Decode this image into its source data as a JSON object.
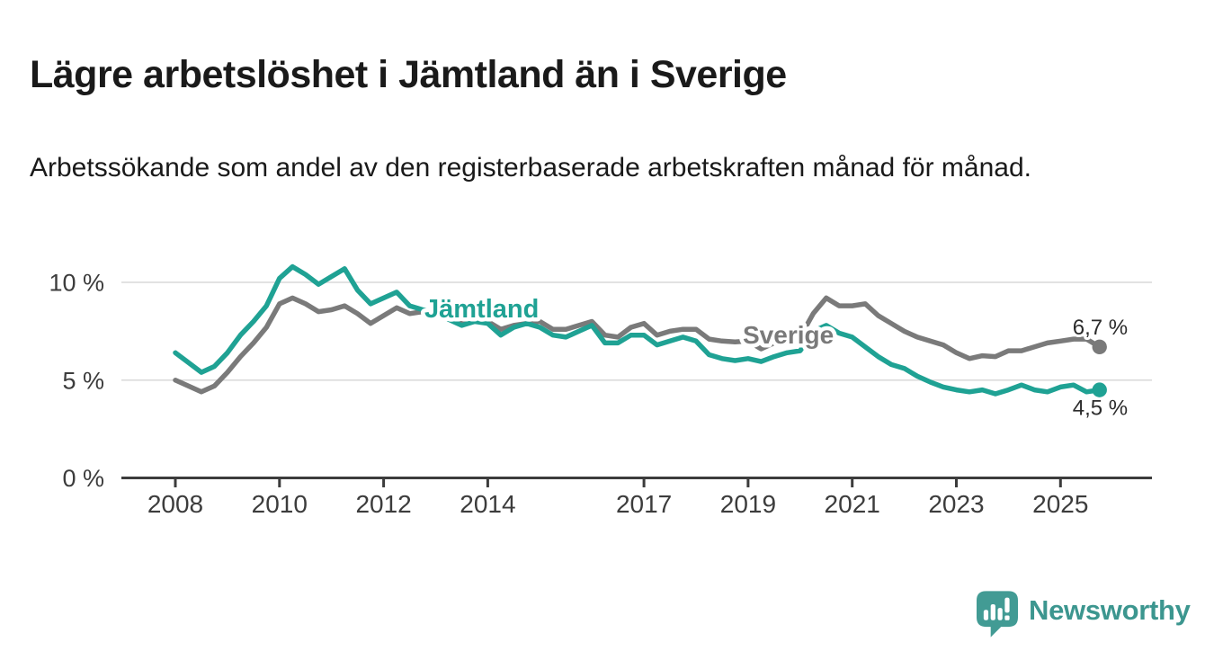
{
  "header": {
    "title": "Lägre arbetslöshet i Jämtland än i Sverige",
    "subtitle": "Arbetssökande som andel av den registerbaserade arbetskraften månad för månad."
  },
  "chart_data": {
    "type": "line",
    "title": "Lägre arbetslöshet i Jämtland än i Sverige",
    "subtitle": "Arbetssökande som andel av den registerbaserade arbetskraften månad för månad.",
    "unit": "%",
    "grid": "horizontal",
    "ylim": [
      0,
      11.5
    ],
    "x_start": 2008.0,
    "x_step_years": 0.25,
    "x_end": 2025.75,
    "y_ticks": [
      {
        "value": 0,
        "label": "0 %"
      },
      {
        "value": 5,
        "label": "5 %"
      },
      {
        "value": 10,
        "label": "10 %"
      }
    ],
    "x_ticks": [
      {
        "value": 2008,
        "label": "2008"
      },
      {
        "value": 2010,
        "label": "2010"
      },
      {
        "value": 2012,
        "label": "2012"
      },
      {
        "value": 2014,
        "label": "2014"
      },
      {
        "value": 2017,
        "label": "2017"
      },
      {
        "value": 2019,
        "label": "2019"
      },
      {
        "value": 2021,
        "label": "2021"
      },
      {
        "value": 2023,
        "label": "2023"
      },
      {
        "value": 2025,
        "label": "2025"
      }
    ],
    "series": [
      {
        "name": "Jämtland",
        "color": "#1fa294",
        "end_value": 4.5,
        "end_label": "4,5 %",
        "values": [
          6.4,
          5.9,
          5.4,
          5.7,
          6.4,
          7.3,
          8.0,
          8.8,
          10.2,
          10.8,
          10.4,
          9.9,
          10.3,
          10.7,
          9.6,
          8.9,
          9.2,
          9.5,
          8.8,
          8.6,
          8.4,
          8.1,
          7.8,
          8.0,
          7.9,
          7.3,
          7.7,
          7.9,
          7.7,
          7.3,
          7.2,
          7.5,
          7.8,
          6.9,
          6.9,
          7.3,
          7.3,
          6.8,
          7.0,
          7.2,
          7.0,
          6.3,
          6.1,
          6.0,
          6.1,
          5.95,
          6.2,
          6.4,
          6.5,
          7.5,
          7.8,
          7.4,
          7.2,
          6.7,
          6.2,
          5.8,
          5.6,
          5.2,
          4.9,
          4.65,
          4.5,
          4.4,
          4.5,
          4.3,
          4.5,
          4.75,
          4.5,
          4.4,
          4.65,
          4.75,
          4.4,
          4.5
        ]
      },
      {
        "name": "Sverige",
        "color": "#7a7a7a",
        "end_value": 6.7,
        "end_label": "6,7 %",
        "values": [
          5.0,
          4.7,
          4.4,
          4.7,
          5.4,
          6.2,
          6.9,
          7.7,
          8.9,
          9.2,
          8.9,
          8.5,
          8.6,
          8.8,
          8.4,
          7.9,
          8.3,
          8.7,
          8.4,
          8.5,
          8.5,
          8.2,
          8.0,
          8.0,
          8.0,
          7.6,
          7.8,
          7.9,
          8.0,
          7.6,
          7.6,
          7.8,
          8.0,
          7.3,
          7.2,
          7.7,
          7.9,
          7.3,
          7.5,
          7.6,
          7.6,
          7.1,
          7.0,
          6.95,
          7.0,
          6.6,
          6.9,
          7.0,
          7.2,
          8.4,
          9.2,
          8.8,
          8.8,
          8.9,
          8.3,
          7.9,
          7.5,
          7.2,
          7.0,
          6.8,
          6.4,
          6.1,
          6.25,
          6.2,
          6.5,
          6.5,
          6.7,
          6.9,
          7.0,
          7.1,
          7.1,
          6.7
        ]
      }
    ]
  },
  "footer": {
    "brand": "Newsworthy",
    "logo_icon": "bar-chart-speech-bubble-icon"
  }
}
